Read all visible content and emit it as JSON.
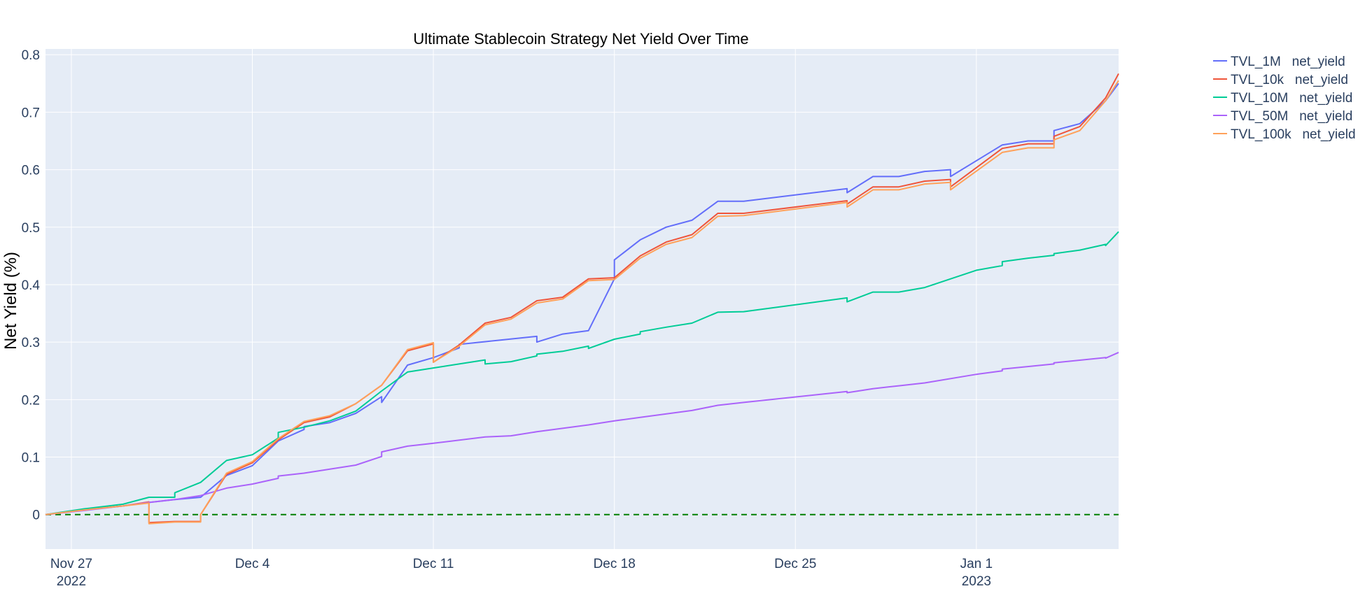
{
  "chart_data": {
    "type": "line",
    "title": "Ultimate Stablecoin Strategy Net Yield Over Time",
    "xlabel": "",
    "ylabel": "Net Yield (%)",
    "xlim": [
      "2022-11-26",
      "2023-01-06"
    ],
    "ylim": [
      -0.06,
      0.81
    ],
    "x_ticks": [
      {
        "date": "2022-11-27",
        "label": "Nov 27",
        "sublabel": "2022"
      },
      {
        "date": "2022-12-04",
        "label": "Dec 4",
        "sublabel": ""
      },
      {
        "date": "2022-12-11",
        "label": "Dec 11",
        "sublabel": ""
      },
      {
        "date": "2022-12-18",
        "label": "Dec 18",
        "sublabel": ""
      },
      {
        "date": "2022-12-25",
        "label": "Dec 25",
        "sublabel": ""
      },
      {
        "date": "2023-01-01",
        "label": "Jan 1",
        "sublabel": "2023"
      }
    ],
    "y_ticks": [
      {
        "value": 0,
        "label": "0"
      },
      {
        "value": 0.1,
        "label": "0.1"
      },
      {
        "value": 0.2,
        "label": "0.2"
      },
      {
        "value": 0.3,
        "label": "0.3"
      },
      {
        "value": 0.4,
        "label": "0.4"
      },
      {
        "value": 0.5,
        "label": "0.5"
      },
      {
        "value": 0.6,
        "label": "0.6"
      },
      {
        "value": 0.7,
        "label": "0.7"
      },
      {
        "value": 0.8,
        "label": "0.8"
      }
    ],
    "grid": true,
    "legend_position": "top-right",
    "reference_line": {
      "value": 0,
      "color": "#007f00",
      "style": "dashed"
    },
    "series": [
      {
        "name": "TVL_1M   net_yield",
        "color": "#636efa",
        "points": [
          [
            "2022-11-26 00:00",
            0
          ],
          [
            "2022-11-27 12:00",
            0.008
          ],
          [
            "2022-11-29 00:00",
            0.015
          ],
          [
            "2022-11-30 00:00",
            0.021
          ],
          [
            "2022-12-01 00:00",
            0.026
          ],
          [
            "2022-12-02 00:00",
            0.03
          ],
          [
            "2022-12-03 00:00",
            0.068
          ],
          [
            "2022-12-04 00:00",
            0.085
          ],
          [
            "2022-12-05 00:00",
            0.128
          ],
          [
            "2022-12-06 00:00",
            0.148
          ],
          [
            "2022-12-06 00:00",
            0.153
          ],
          [
            "2022-12-07 00:00",
            0.16
          ],
          [
            "2022-12-08 00:00",
            0.176
          ],
          [
            "2022-12-09 00:00",
            0.205
          ],
          [
            "2022-12-09 00:00",
            0.195
          ],
          [
            "2022-12-10 00:00",
            0.26
          ],
          [
            "2022-12-11 00:00",
            0.273
          ],
          [
            "2022-12-12 00:00",
            0.29
          ],
          [
            "2022-12-12 00:00",
            0.296
          ],
          [
            "2022-12-15 00:00",
            0.31
          ],
          [
            "2022-12-15 00:00",
            0.3
          ],
          [
            "2022-12-16 00:00",
            0.314
          ],
          [
            "2022-12-17 00:00",
            0.32
          ],
          [
            "2022-12-18 00:00",
            0.41
          ],
          [
            "2022-12-18 00:00",
            0.425
          ],
          [
            "2022-12-18 00:00",
            0.443
          ],
          [
            "2022-12-19 00:00",
            0.478
          ],
          [
            "2022-12-20 00:00",
            0.5
          ],
          [
            "2022-12-21 00:00",
            0.512
          ],
          [
            "2022-12-22 00:00",
            0.545
          ],
          [
            "2022-12-23 00:00",
            0.545
          ],
          [
            "2022-12-27 00:00",
            0.567
          ],
          [
            "2022-12-27 00:00",
            0.56
          ],
          [
            "2022-12-28 00:00",
            0.588
          ],
          [
            "2022-12-29 00:00",
            0.588
          ],
          [
            "2022-12-30 00:00",
            0.597
          ],
          [
            "2022-12-31 00:00",
            0.6
          ],
          [
            "2022-12-31 00:00",
            0.588
          ],
          [
            "2023-01-02 00:00",
            0.643
          ],
          [
            "2023-01-03 00:00",
            0.65
          ],
          [
            "2023-01-04 00:00",
            0.65
          ],
          [
            "2023-01-04 00:00",
            0.668
          ],
          [
            "2023-01-05 00:00",
            0.68
          ],
          [
            "2023-01-06 00:00",
            0.72
          ],
          [
            "2023-01-06 12:00",
            0.75
          ]
        ]
      },
      {
        "name": "TVL_10k   net_yield",
        "color": "#ef553b",
        "points": [
          [
            "2022-11-26 00:00",
            0
          ],
          [
            "2022-11-27 12:00",
            0.008
          ],
          [
            "2022-11-29 00:00",
            0.015
          ],
          [
            "2022-11-30 00:00",
            0.022
          ],
          [
            "2022-11-30 00:00",
            -0.014
          ],
          [
            "2022-12-01 00:00",
            -0.012
          ],
          [
            "2022-12-02 00:00",
            -0.012
          ],
          [
            "2022-12-02 00:00",
            0
          ],
          [
            "2022-12-03 00:00",
            0.07
          ],
          [
            "2022-12-04 00:00",
            0.09
          ],
          [
            "2022-12-05 00:00",
            0.13
          ],
          [
            "2022-12-06 00:00",
            0.16
          ],
          [
            "2022-12-07 00:00",
            0.17
          ],
          [
            "2022-12-08 00:00",
            0.193
          ],
          [
            "2022-12-09 00:00",
            0.225
          ],
          [
            "2022-12-10 00:00",
            0.285
          ],
          [
            "2022-12-11 00:00",
            0.297
          ],
          [
            "2022-12-11 00:00",
            0.265
          ],
          [
            "2022-12-12 00:00",
            0.295
          ],
          [
            "2022-12-13 00:00",
            0.333
          ],
          [
            "2022-12-14 00:00",
            0.343
          ],
          [
            "2022-12-15 00:00",
            0.372
          ],
          [
            "2022-12-16 00:00",
            0.378
          ],
          [
            "2022-12-17 00:00",
            0.41
          ],
          [
            "2022-12-18 00:00",
            0.412
          ],
          [
            "2022-12-19 00:00",
            0.45
          ],
          [
            "2022-12-20 00:00",
            0.474
          ],
          [
            "2022-12-21 00:00",
            0.487
          ],
          [
            "2022-12-22 00:00",
            0.524
          ],
          [
            "2022-12-23 00:00",
            0.524
          ],
          [
            "2022-12-27 00:00",
            0.546
          ],
          [
            "2022-12-27 00:00",
            0.54
          ],
          [
            "2022-12-28 00:00",
            0.57
          ],
          [
            "2022-12-29 00:00",
            0.57
          ],
          [
            "2022-12-30 00:00",
            0.58
          ],
          [
            "2022-12-31 00:00",
            0.583
          ],
          [
            "2022-12-31 00:00",
            0.57
          ],
          [
            "2023-01-02 00:00",
            0.637
          ],
          [
            "2023-01-03 00:00",
            0.645
          ],
          [
            "2023-01-04 00:00",
            0.645
          ],
          [
            "2023-01-04 00:00",
            0.658
          ],
          [
            "2023-01-05 00:00",
            0.675
          ],
          [
            "2023-01-06 00:00",
            0.725
          ],
          [
            "2023-01-06 12:00",
            0.767
          ]
        ]
      },
      {
        "name": "TVL_10M   net_yield",
        "color": "#00cc96",
        "points": [
          [
            "2022-11-26 00:00",
            0
          ],
          [
            "2022-11-27 12:00",
            0.01
          ],
          [
            "2022-11-29 00:00",
            0.018
          ],
          [
            "2022-11-30 00:00",
            0.03
          ],
          [
            "2022-12-01 00:00",
            0.03
          ],
          [
            "2022-12-01 00:00",
            0.038
          ],
          [
            "2022-12-02 00:00",
            0.056
          ],
          [
            "2022-12-03 00:00",
            0.094
          ],
          [
            "2022-12-04 00:00",
            0.104
          ],
          [
            "2022-12-05 00:00",
            0.133
          ],
          [
            "2022-12-05 00:00",
            0.143
          ],
          [
            "2022-12-06 00:00",
            0.152
          ],
          [
            "2022-12-07 00:00",
            0.163
          ],
          [
            "2022-12-08 00:00",
            0.18
          ],
          [
            "2022-12-09 00:00",
            0.215
          ],
          [
            "2022-12-10 00:00",
            0.248
          ],
          [
            "2022-12-11 00:00",
            0.255
          ],
          [
            "2022-12-13 00:00",
            0.269
          ],
          [
            "2022-12-13 00:00",
            0.262
          ],
          [
            "2022-12-14 00:00",
            0.266
          ],
          [
            "2022-12-15 00:00",
            0.276
          ],
          [
            "2022-12-15 00:00",
            0.279
          ],
          [
            "2022-12-16 00:00",
            0.284
          ],
          [
            "2022-12-17 00:00",
            0.293
          ],
          [
            "2022-12-17 00:00",
            0.289
          ],
          [
            "2022-12-18 00:00",
            0.305
          ],
          [
            "2022-12-19 00:00",
            0.314
          ],
          [
            "2022-12-19 00:00",
            0.318
          ],
          [
            "2022-12-20 00:00",
            0.326
          ],
          [
            "2022-12-21 00:00",
            0.333
          ],
          [
            "2022-12-22 00:00",
            0.352
          ],
          [
            "2022-12-23 00:00",
            0.353
          ],
          [
            "2022-12-27 00:00",
            0.377
          ],
          [
            "2022-12-27 00:00",
            0.37
          ],
          [
            "2022-12-28 00:00",
            0.387
          ],
          [
            "2022-12-29 00:00",
            0.387
          ],
          [
            "2022-12-30 00:00",
            0.395
          ],
          [
            "2023-01-01 00:00",
            0.425
          ],
          [
            "2023-01-02 00:00",
            0.433
          ],
          [
            "2023-01-02 00:00",
            0.44
          ],
          [
            "2023-01-03 00:00",
            0.446
          ],
          [
            "2023-01-04 00:00",
            0.451
          ],
          [
            "2023-01-04 00:00",
            0.454
          ],
          [
            "2023-01-05 00:00",
            0.46
          ],
          [
            "2023-01-06 00:00",
            0.47
          ],
          [
            "2023-01-06 00:00",
            0.468
          ],
          [
            "2023-01-06 12:00",
            0.492
          ]
        ]
      },
      {
        "name": "TVL_50M   net_yield",
        "color": "#ab63fa",
        "points": [
          [
            "2022-11-26 00:00",
            0
          ],
          [
            "2022-11-27 12:00",
            0.007
          ],
          [
            "2022-11-29 00:00",
            0.015
          ],
          [
            "2022-11-30 00:00",
            0.021
          ],
          [
            "2022-12-01 00:00",
            0.026
          ],
          [
            "2022-12-02 00:00",
            0.033
          ],
          [
            "2022-12-03 00:00",
            0.046
          ],
          [
            "2022-12-04 00:00",
            0.053
          ],
          [
            "2022-12-05 00:00",
            0.063
          ],
          [
            "2022-12-05 00:00",
            0.067
          ],
          [
            "2022-12-06 00:00",
            0.072
          ],
          [
            "2022-12-07 00:00",
            0.079
          ],
          [
            "2022-12-08 00:00",
            0.086
          ],
          [
            "2022-12-09 00:00",
            0.101
          ],
          [
            "2022-12-09 00:00",
            0.109
          ],
          [
            "2022-12-10 00:00",
            0.119
          ],
          [
            "2022-12-11 00:00",
            0.124
          ],
          [
            "2022-12-13 00:00",
            0.135
          ],
          [
            "2022-12-14 00:00",
            0.137
          ],
          [
            "2022-12-15 00:00",
            0.144
          ],
          [
            "2022-12-16 00:00",
            0.15
          ],
          [
            "2022-12-17 00:00",
            0.156
          ],
          [
            "2022-12-18 00:00",
            0.163
          ],
          [
            "2022-12-19 00:00",
            0.169
          ],
          [
            "2022-12-21 00:00",
            0.181
          ],
          [
            "2022-12-22 00:00",
            0.19
          ],
          [
            "2022-12-23 00:00",
            0.195
          ],
          [
            "2022-12-27 00:00",
            0.214
          ],
          [
            "2022-12-27 00:00",
            0.212
          ],
          [
            "2022-12-28 00:00",
            0.219
          ],
          [
            "2022-12-29 00:00",
            0.224
          ],
          [
            "2022-12-30 00:00",
            0.229
          ],
          [
            "2023-01-01 00:00",
            0.244
          ],
          [
            "2023-01-02 00:00",
            0.25
          ],
          [
            "2023-01-02 00:00",
            0.253
          ],
          [
            "2023-01-04 00:00",
            0.262
          ],
          [
            "2023-01-04 00:00",
            0.264
          ],
          [
            "2023-01-06 00:00",
            0.273
          ],
          [
            "2023-01-06 00:00",
            0.272
          ],
          [
            "2023-01-06 12:00",
            0.282
          ]
        ]
      },
      {
        "name": "TVL_100k   net_yield",
        "color": "#ffa15a",
        "points": [
          [
            "2022-11-26 00:00",
            0
          ],
          [
            "2022-11-27 12:00",
            0.008
          ],
          [
            "2022-11-29 00:00",
            0.015
          ],
          [
            "2022-11-30 00:00",
            0.02
          ],
          [
            "2022-11-30 00:00",
            -0.016
          ],
          [
            "2022-12-01 00:00",
            -0.013
          ],
          [
            "2022-12-02 00:00",
            -0.013
          ],
          [
            "2022-12-02 00:00",
            0
          ],
          [
            "2022-12-03 00:00",
            0.072
          ],
          [
            "2022-12-04 00:00",
            0.092
          ],
          [
            "2022-12-05 00:00",
            0.132
          ],
          [
            "2022-12-06 00:00",
            0.162
          ],
          [
            "2022-12-07 00:00",
            0.172
          ],
          [
            "2022-12-08 00:00",
            0.193
          ],
          [
            "2022-12-09 00:00",
            0.225
          ],
          [
            "2022-12-10 00:00",
            0.287
          ],
          [
            "2022-12-11 00:00",
            0.299
          ],
          [
            "2022-12-11 00:00",
            0.265
          ],
          [
            "2022-12-12 00:00",
            0.293
          ],
          [
            "2022-12-13 00:00",
            0.33
          ],
          [
            "2022-12-14 00:00",
            0.34
          ],
          [
            "2022-12-15 00:00",
            0.368
          ],
          [
            "2022-12-16 00:00",
            0.375
          ],
          [
            "2022-12-17 00:00",
            0.407
          ],
          [
            "2022-12-18 00:00",
            0.409
          ],
          [
            "2022-12-19 00:00",
            0.446
          ],
          [
            "2022-12-20 00:00",
            0.47
          ],
          [
            "2022-12-21 00:00",
            0.482
          ],
          [
            "2022-12-22 00:00",
            0.519
          ],
          [
            "2022-12-23 00:00",
            0.52
          ],
          [
            "2022-12-27 00:00",
            0.543
          ],
          [
            "2022-12-27 00:00",
            0.535
          ],
          [
            "2022-12-28 00:00",
            0.565
          ],
          [
            "2022-12-29 00:00",
            0.565
          ],
          [
            "2022-12-30 00:00",
            0.575
          ],
          [
            "2022-12-31 00:00",
            0.578
          ],
          [
            "2022-12-31 00:00",
            0.565
          ],
          [
            "2023-01-02 00:00",
            0.63
          ],
          [
            "2023-01-03 00:00",
            0.638
          ],
          [
            "2023-01-04 00:00",
            0.638
          ],
          [
            "2023-01-04 00:00",
            0.652
          ],
          [
            "2023-01-05 00:00",
            0.668
          ],
          [
            "2023-01-06 00:00",
            0.72
          ],
          [
            "2023-01-06 12:00",
            0.755
          ]
        ]
      }
    ]
  },
  "colors": {
    "plot_background": "#e5ecf6",
    "grid": "#ffffff",
    "text": "#2a3f5f",
    "zero_line": "#007f00"
  }
}
